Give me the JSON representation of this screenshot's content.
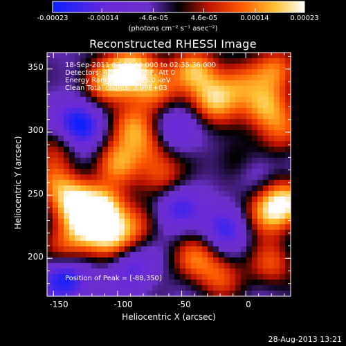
{
  "chart_data": {
    "type": "heatmap",
    "title": "Reconstructed RHESSI Image",
    "xlabel": "Heliocentric X (arcsec)",
    "ylabel": "Heliocentric Y (arcsec)",
    "xlim": [
      -155,
      35
    ],
    "ylim": [
      170,
      363
    ],
    "x_ticks": [
      "-150",
      "-100",
      "-50",
      "0"
    ],
    "x_tick_values": [
      -150,
      -100,
      -50,
      0
    ],
    "y_ticks": [
      "200",
      "250",
      "300",
      "350"
    ],
    "y_tick_values": [
      200,
      250,
      300,
      350
    ],
    "colorbar": {
      "ticks": [
        "-0.00023",
        "-0.00014",
        "-4.6e-05",
        "4.6e-05",
        "0.00014",
        "0.00023"
      ],
      "tick_values": [
        -0.00023,
        -0.00014,
        -4.6e-05,
        4.6e-05,
        0.00014,
        0.00023
      ],
      "min": -0.00023,
      "max": 0.00023,
      "unit_label": "(photons cm⁻² s⁻¹ asec⁻²)",
      "colormap": "rhessi-blue-purple-red-yellow-white"
    },
    "info_lines": [
      "18-Sep-2011 02:34:40.000 to 02:35:36.000",
      "Detectors: 4F 5F 6F 7F 8F, Att 0",
      "Energy Range: 12.0 - 25.0 keV",
      "Clean     Total counts: 3.99E+03"
    ],
    "peak_label": "Position of Peak = [-88,350]",
    "sources": [
      {
        "x": -110,
        "y": 340,
        "v": 0.0002
      },
      {
        "x": -88,
        "y": 350,
        "v": 0.00023
      },
      {
        "x": -70,
        "y": 335,
        "v": 0.00017
      },
      {
        "x": -40,
        "y": 350,
        "v": 0.00019
      },
      {
        "x": -25,
        "y": 325,
        "v": 0.00021
      },
      {
        "x": -5,
        "y": 340,
        "v": 0.00014
      },
      {
        "x": 25,
        "y": 350,
        "v": 0.00016
      },
      {
        "x": 15,
        "y": 320,
        "v": 0.0002
      },
      {
        "x": 28,
        "y": 300,
        "v": 0.00013
      },
      {
        "x": -90,
        "y": 305,
        "v": 0.00018
      },
      {
        "x": -72,
        "y": 290,
        "v": 0.00015
      },
      {
        "x": -100,
        "y": 275,
        "v": 0.00017
      },
      {
        "x": -65,
        "y": 265,
        "v": 0.00014
      },
      {
        "x": -5,
        "y": 275,
        "v": 0.00012
      },
      {
        "x": -145,
        "y": 290,
        "v": 0.00011
      },
      {
        "x": -150,
        "y": 260,
        "v": 0.00013
      },
      {
        "x": -135,
        "y": 245,
        "v": 0.0002
      },
      {
        "x": -110,
        "y": 240,
        "v": 0.00023
      },
      {
        "x": -125,
        "y": 225,
        "v": 0.00019
      },
      {
        "x": -105,
        "y": 215,
        "v": 0.00018
      },
      {
        "x": -140,
        "y": 205,
        "v": 0.00014
      },
      {
        "x": -85,
        "y": 225,
        "v": 0.00012
      },
      {
        "x": -40,
        "y": 200,
        "v": 0.00015
      },
      {
        "x": -20,
        "y": 185,
        "v": 0.00013
      },
      {
        "x": 15,
        "y": 235,
        "v": 0.00018
      },
      {
        "x": 30,
        "y": 245,
        "v": 0.00022
      },
      {
        "x": 20,
        "y": 195,
        "v": 0.00014
      },
      {
        "x": -130,
        "y": 305,
        "v": -0.00023
      },
      {
        "x": -140,
        "y": 185,
        "v": -0.0002
      },
      {
        "x": -60,
        "y": 300,
        "v": -0.00015
      },
      {
        "x": -55,
        "y": 240,
        "v": -0.00013
      },
      {
        "x": -15,
        "y": 225,
        "v": -0.00014
      },
      {
        "x": -90,
        "y": 195,
        "v": -0.00012
      },
      {
        "x": 5,
        "y": 270,
        "v": -0.0001
      }
    ]
  },
  "footer": {
    "timestamp": "28-Aug-2013 13:21"
  }
}
